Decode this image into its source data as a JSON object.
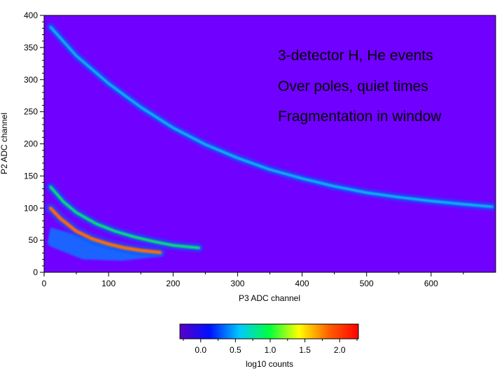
{
  "chart_data": {
    "type": "heatmap",
    "title": "",
    "xlabel": "P3 ADC channel",
    "ylabel": "P2 ADC channel",
    "xlim": [
      0,
      700
    ],
    "ylim": [
      0,
      400
    ],
    "x_ticks": [
      0,
      100,
      200,
      300,
      400,
      500,
      600
    ],
    "y_ticks": [
      0,
      50,
      100,
      150,
      200,
      250,
      300,
      350,
      400
    ],
    "annotations": [
      "3-detector H, He events",
      "Over poles, quiet times",
      "Fragmentation in window"
    ],
    "colorbar": {
      "label": "log10 counts",
      "range": [
        -0.3,
        2.27
      ],
      "ticks": [
        0.0,
        0.5,
        1.0,
        1.5,
        2.0
      ],
      "tick_labels": [
        "0.0",
        "0.5",
        "1.0",
        "1.5",
        "2.0"
      ],
      "colormap": [
        "#5a00c8",
        "#0010ff",
        "#00c8ff",
        "#00ff40",
        "#ffff00",
        "#ff6000",
        "#ff0000"
      ]
    },
    "background_color": "#7000ff",
    "tracks": [
      {
        "name": "upper track",
        "x": [
          10,
          50,
          100,
          150,
          200,
          250,
          300,
          350,
          400,
          450,
          500,
          550,
          600,
          650,
          695
        ],
        "y": [
          382,
          337,
          294,
          257,
          225,
          199,
          178,
          160,
          146,
          134,
          124,
          117,
          111,
          106,
          102
        ],
        "level": 0.6
      },
      {
        "name": "middle track",
        "x": [
          10,
          30,
          50,
          80,
          110,
          140,
          170,
          200,
          240
        ],
        "y": [
          133,
          110,
          93,
          76,
          64,
          55,
          48,
          42,
          38
        ],
        "level": 0.9
      },
      {
        "name": "lower track",
        "x": [
          10,
          25,
          50,
          75,
          100,
          125,
          150,
          180
        ],
        "y": [
          100,
          84,
          64,
          52,
          44,
          38,
          34,
          31
        ],
        "level": 1.8
      }
    ],
    "diffuse_regions": [
      {
        "name": "low-energy fragmentation region",
        "polygon_x": [
          5,
          10,
          60,
          120,
          180,
          185,
          120,
          60,
          10,
          5
        ],
        "polygon_y": [
          45,
          70,
          55,
          40,
          32,
          25,
          18,
          20,
          40,
          45
        ],
        "level": 0.4
      }
    ]
  }
}
